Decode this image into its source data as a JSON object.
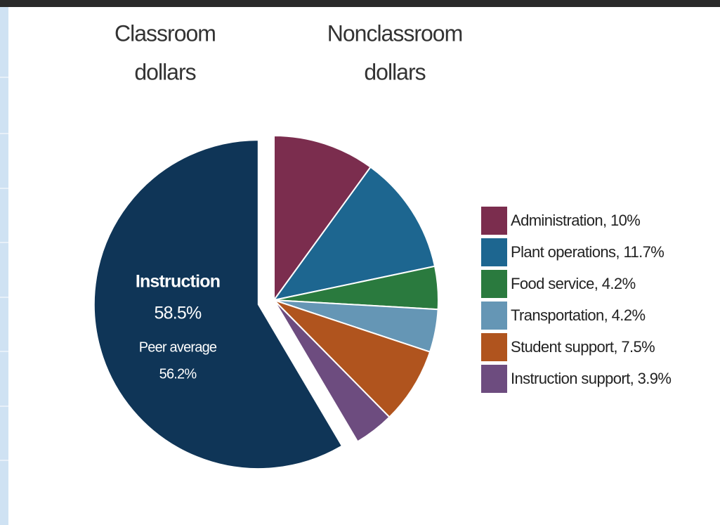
{
  "chart_data": {
    "type": "pie",
    "headings": [
      [
        "Classroom",
        "dollars"
      ],
      [
        "Nonclassroom",
        "dollars"
      ]
    ],
    "categories": [
      "Instruction",
      "Administration",
      "Plant operations",
      "Food service",
      "Transportation",
      "Student support",
      "Instruction support"
    ],
    "values": [
      58.5,
      10,
      11.7,
      4.2,
      4.2,
      7.5,
      3.9
    ],
    "value_labels": [
      "58.5%",
      "10%",
      "11.7%",
      "4.2%",
      "4.2%",
      "7.5%",
      "3.9%"
    ],
    "colors": [
      "#0f3557",
      "#7b2d4e",
      "#1d6690",
      "#2a7a3e",
      "#6596b5",
      "#b0541e",
      "#6d4c7f"
    ],
    "legend_separator": ", ",
    "annotation": {
      "label": "Peer average",
      "value": "56.2%"
    },
    "exploded": 0
  }
}
